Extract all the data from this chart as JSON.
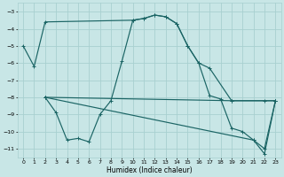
{
  "xlabel": "Humidex (Indice chaleur)",
  "bg_color": "#c8e6e6",
  "grid_color": "#a8d0d0",
  "line_color": "#1a6464",
  "xlim": [
    -0.5,
    23.5
  ],
  "ylim": [
    -11.5,
    -2.5
  ],
  "yticks": [
    -3,
    -4,
    -5,
    -6,
    -7,
    -8,
    -9,
    -10,
    -11
  ],
  "xticks": [
    0,
    1,
    2,
    3,
    4,
    5,
    6,
    7,
    8,
    9,
    10,
    11,
    12,
    13,
    14,
    15,
    16,
    17,
    18,
    19,
    20,
    21,
    22,
    23
  ],
  "curve1": {
    "x": [
      0,
      1,
      2,
      10,
      11,
      12,
      13,
      14,
      15,
      16,
      17,
      19,
      22,
      23
    ],
    "y": [
      -5.0,
      -6.2,
      -3.6,
      -3.5,
      -3.4,
      -3.2,
      -3.3,
      -3.7,
      -5.0,
      -6.0,
      -6.3,
      -8.2,
      -8.2,
      -8.2
    ]
  },
  "curve2": {
    "x": [
      2,
      3,
      4,
      5,
      6,
      7,
      8,
      9,
      10,
      11,
      12,
      13,
      14,
      15,
      16,
      17,
      18,
      19,
      20,
      21,
      22,
      23
    ],
    "y": [
      -8.0,
      -8.9,
      -10.5,
      -10.4,
      -10.6,
      -9.0,
      -8.2,
      -5.9,
      -3.5,
      -3.4,
      -3.2,
      -3.3,
      -3.7,
      -5.0,
      -6.0,
      -7.9,
      -8.1,
      -9.8,
      -10.0,
      -10.5,
      -11.3,
      -8.2
    ]
  },
  "flat1": {
    "x": [
      2,
      19,
      23
    ],
    "y": [
      -8.0,
      -8.2,
      -8.2
    ]
  },
  "flat2": {
    "x": [
      2,
      21,
      22,
      23
    ],
    "y": [
      -8.0,
      -10.5,
      -11.0,
      -8.2
    ]
  }
}
